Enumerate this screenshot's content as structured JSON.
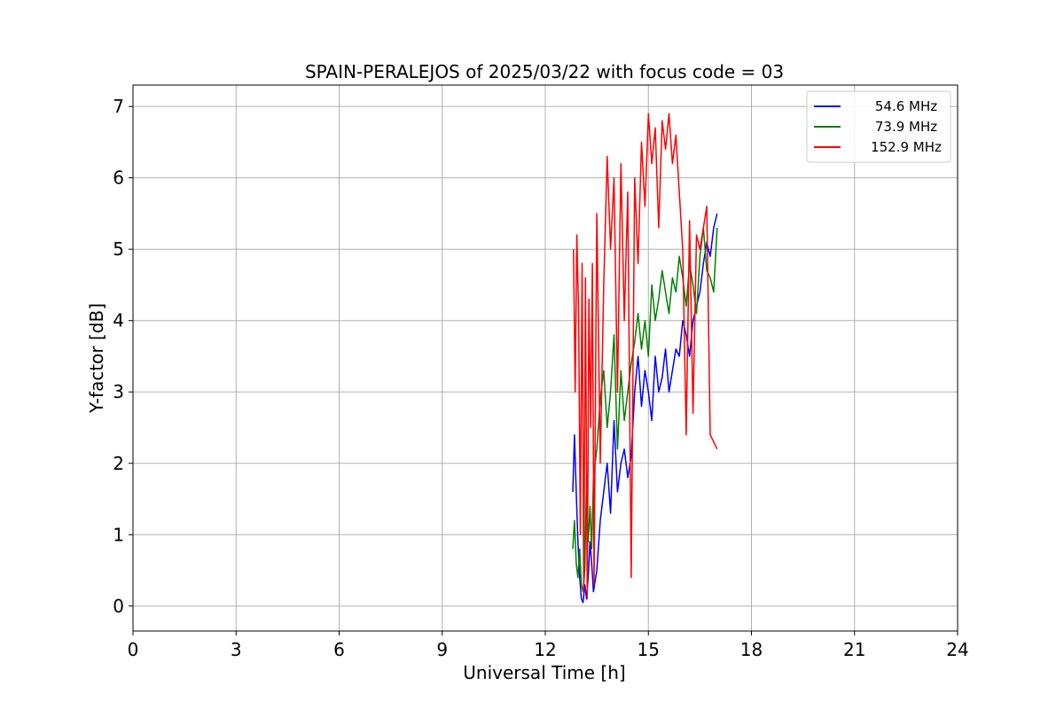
{
  "chart_data": {
    "type": "line",
    "title": "SPAIN-PERALEJOS of 2025/03/22 with focus code = 03",
    "xlabel": "Universal Time [h]",
    "ylabel": "Y-factor [dB]",
    "xlim": [
      0,
      24
    ],
    "ylim": [
      -0.35,
      7.3
    ],
    "xticks": [
      0,
      3,
      6,
      9,
      12,
      15,
      18,
      21,
      24
    ],
    "yticks": [
      0,
      1,
      2,
      3,
      4,
      5,
      6,
      7
    ],
    "grid": true,
    "legend_position": "top-right",
    "series": [
      {
        "name": "54.6 MHz",
        "color": "#0000ff",
        "x": [
          12.8,
          12.85,
          12.9,
          12.95,
          13.0,
          13.05,
          13.1,
          13.15,
          13.2,
          13.25,
          13.3,
          13.35,
          13.4,
          13.5,
          13.6,
          13.7,
          13.8,
          13.9,
          14.0,
          14.1,
          14.2,
          14.3,
          14.4,
          14.5,
          14.6,
          14.7,
          14.8,
          14.9,
          15.0,
          15.1,
          15.2,
          15.3,
          15.4,
          15.5,
          15.6,
          15.7,
          15.8,
          15.9,
          16.0,
          16.1,
          16.2,
          16.3,
          16.4,
          16.5,
          16.6,
          16.7,
          16.8,
          16.9,
          17.0
        ],
        "y": [
          1.6,
          2.4,
          1.6,
          0.9,
          0.4,
          0.1,
          0.05,
          0.3,
          0.1,
          0.4,
          0.9,
          0.6,
          0.2,
          0.5,
          1.2,
          1.6,
          2.0,
          1.3,
          2.6,
          1.6,
          2.0,
          2.2,
          1.8,
          2.1,
          3.0,
          3.5,
          2.8,
          3.3,
          3.0,
          2.6,
          3.5,
          3.0,
          3.2,
          3.6,
          3.0,
          3.3,
          3.6,
          3.5,
          4.0,
          3.8,
          3.5,
          4.0,
          4.2,
          4.4,
          4.8,
          5.1,
          4.9,
          5.3,
          5.5
        ]
      },
      {
        "name": "73.9 MHz",
        "color": "#008000",
        "x": [
          12.8,
          12.85,
          12.9,
          12.95,
          13.0,
          13.05,
          13.1,
          13.15,
          13.2,
          13.25,
          13.3,
          13.35,
          13.4,
          13.5,
          13.6,
          13.7,
          13.8,
          13.9,
          14.0,
          14.1,
          14.2,
          14.3,
          14.4,
          14.5,
          14.6,
          14.7,
          14.8,
          14.9,
          15.0,
          15.1,
          15.2,
          15.3,
          15.4,
          15.5,
          15.6,
          15.7,
          15.8,
          15.9,
          16.0,
          16.1,
          16.2,
          16.3,
          16.4,
          16.5,
          16.6,
          16.7,
          16.8,
          16.9,
          17.0
        ],
        "y": [
          0.8,
          1.2,
          0.6,
          0.4,
          0.8,
          0.3,
          0.2,
          0.5,
          1.8,
          0.9,
          1.4,
          0.8,
          1.8,
          2.2,
          2.9,
          3.3,
          2.5,
          3.0,
          3.8,
          2.2,
          3.3,
          2.6,
          3.0,
          3.4,
          3.7,
          4.1,
          3.6,
          4.0,
          3.5,
          4.5,
          4.0,
          4.3,
          4.7,
          4.4,
          4.1,
          4.6,
          4.4,
          4.9,
          4.6,
          4.2,
          4.8,
          4.5,
          4.1,
          4.9,
          5.3,
          4.7,
          4.6,
          4.4,
          5.3
        ]
      },
      {
        "name": "152.9 MHz",
        "color": "#ff0000",
        "x": [
          12.82,
          12.87,
          12.92,
          12.97,
          13.02,
          13.07,
          13.12,
          13.17,
          13.22,
          13.27,
          13.32,
          13.37,
          13.42,
          13.5,
          13.6,
          13.7,
          13.8,
          13.9,
          14.0,
          14.1,
          14.2,
          14.3,
          14.4,
          14.5,
          14.6,
          14.7,
          14.8,
          14.9,
          15.0,
          15.1,
          15.2,
          15.3,
          15.4,
          15.5,
          15.6,
          15.7,
          15.8,
          15.9,
          16.0,
          16.1,
          16.2,
          16.3,
          16.4,
          16.5,
          16.6,
          16.7,
          16.8,
          16.9,
          17.0
        ],
        "y": [
          5.0,
          3.0,
          5.2,
          4.1,
          1.0,
          4.8,
          0.2,
          4.6,
          0.1,
          4.3,
          2.5,
          4.8,
          0.3,
          5.5,
          2.0,
          4.5,
          6.3,
          5.0,
          6.0,
          3.0,
          6.2,
          4.0,
          5.8,
          0.4,
          6.0,
          4.8,
          6.5,
          5.6,
          6.9,
          6.2,
          6.7,
          5.3,
          6.8,
          6.4,
          6.9,
          6.2,
          6.6,
          5.8,
          5.0,
          2.4,
          5.4,
          2.7,
          5.2,
          5.0,
          5.3,
          5.6,
          2.4,
          2.3,
          2.2
        ]
      }
    ]
  }
}
